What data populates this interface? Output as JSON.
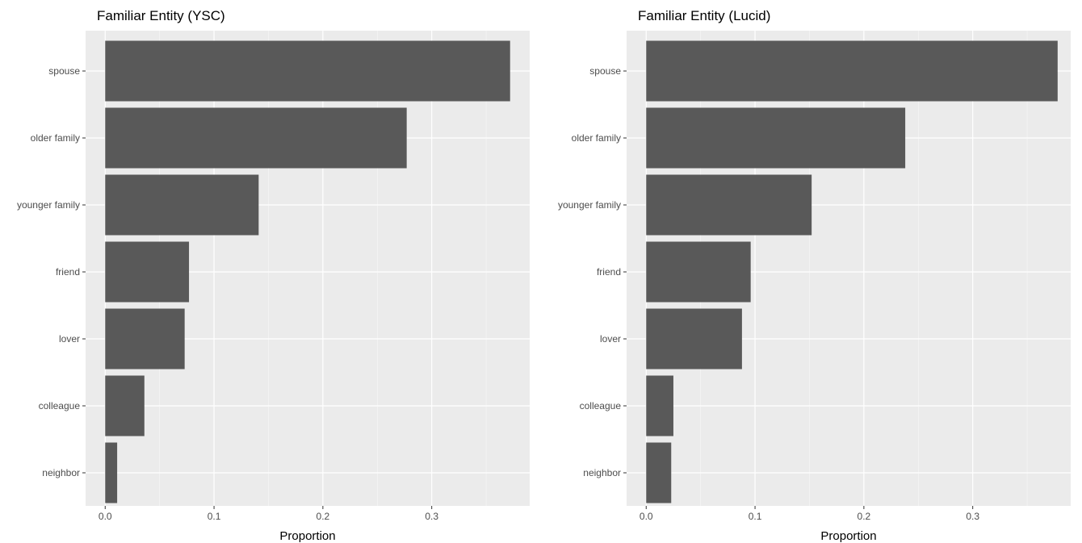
{
  "colors": {
    "panel_background": "#EBEBEB",
    "gridline_major": "#FFFFFF",
    "bar_fill": "#595959",
    "tick_label": "#4D4D4D"
  },
  "chart_data": [
    {
      "type": "bar",
      "orientation": "horizontal",
      "title": "Familiar Entity (YSC)",
      "xlabel": "Proportion",
      "ylabel": "",
      "categories": [
        "spouse",
        "older family",
        "younger family",
        "friend",
        "lover",
        "colleague",
        "neighbor"
      ],
      "values": [
        0.372,
        0.277,
        0.141,
        0.077,
        0.073,
        0.036,
        0.011
      ],
      "xlim": [
        -0.018,
        0.39
      ],
      "xticks": [
        0.0,
        0.1,
        0.2,
        0.3
      ],
      "xtick_labels": [
        "0.0",
        "0.1",
        "0.2",
        "0.3"
      ],
      "grid": true,
      "legend": "none"
    },
    {
      "type": "bar",
      "orientation": "horizontal",
      "title": "Familiar Entity (Lucid)",
      "xlabel": "Proportion",
      "ylabel": "",
      "categories": [
        "spouse",
        "older family",
        "younger family",
        "friend",
        "lover",
        "colleague",
        "neighbor"
      ],
      "values": [
        0.378,
        0.238,
        0.152,
        0.096,
        0.088,
        0.025,
        0.023
      ],
      "xlim": [
        -0.018,
        0.39
      ],
      "xticks": [
        0.0,
        0.1,
        0.2,
        0.3
      ],
      "xtick_labels": [
        "0.0",
        "0.1",
        "0.2",
        "0.3"
      ],
      "grid": true,
      "legend": "none"
    }
  ]
}
